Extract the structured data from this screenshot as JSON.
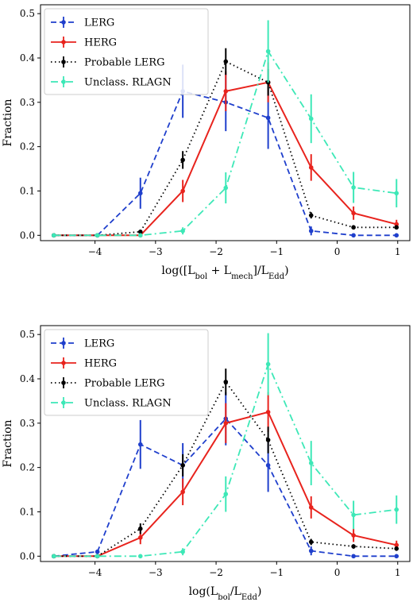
{
  "chart_data": [
    {
      "type": "line",
      "xlabel": "log([L_bol + L_mech]/L_Edd)",
      "xlabel_parts": {
        "pre": "log([L",
        "sub1": "bol",
        "mid1": " + L",
        "sub2": "mech",
        "mid2": "]/L",
        "sub3": "Edd",
        "post": ")"
      },
      "ylabel": "Fraction",
      "xlim": [
        -4.9,
        1.2
      ],
      "ylim": [
        -0.012,
        0.52
      ],
      "xticks": [
        -4,
        -3,
        -2,
        -1,
        0,
        1
      ],
      "xtick_labels": [
        "−4",
        "−3",
        "−2",
        "−1",
        "0",
        "1"
      ],
      "yticks": [
        0.0,
        0.1,
        0.2,
        0.3,
        0.4,
        0.5
      ],
      "ytick_labels": [
        "0.0",
        "0.1",
        "0.2",
        "0.3",
        "0.4",
        "0.5"
      ],
      "legend_position": "top-left",
      "series": [
        {
          "name": "LERG",
          "color": "#1f3fcc",
          "dash": "dashed",
          "x": [
            -4.68,
            -3.96,
            -3.25,
            -2.55,
            -1.84,
            -1.14,
            -0.43,
            0.27,
            0.98
          ],
          "y": [
            0.0,
            0.0,
            0.095,
            0.325,
            0.3,
            0.265,
            0.01,
            0.0,
            0.0
          ],
          "err": [
            0.0,
            0.0,
            0.035,
            0.06,
            0.065,
            0.07,
            0.01,
            0.0,
            0.0
          ]
        },
        {
          "name": "HERG",
          "color": "#e8231d",
          "dash": "solid",
          "x": [
            -4.68,
            -3.96,
            -3.25,
            -2.55,
            -1.84,
            -1.14,
            -0.43,
            0.27,
            0.98
          ],
          "y": [
            0.0,
            0.0,
            0.0,
            0.1,
            0.325,
            0.345,
            0.153,
            0.05,
            0.025
          ],
          "err": [
            0.0,
            0.0,
            0.0,
            0.025,
            0.045,
            0.045,
            0.03,
            0.015,
            0.01
          ]
        },
        {
          "name": "Probable LERG",
          "color": "#000000",
          "dash": "dotted",
          "x": [
            -4.68,
            -3.96,
            -3.25,
            -2.55,
            -1.84,
            -1.14,
            -0.43,
            0.27,
            0.98
          ],
          "y": [
            0.0,
            0.0,
            0.008,
            0.17,
            0.392,
            0.345,
            0.045,
            0.018,
            0.018
          ],
          "err": [
            0.0,
            0.0,
            0.004,
            0.02,
            0.03,
            0.03,
            0.007,
            0.005,
            0.005
          ]
        },
        {
          "name": "Unclass. RLAGN",
          "color": "#3de8b7",
          "dash": "dashdot",
          "x": [
            -4.68,
            -3.96,
            -3.25,
            -2.55,
            -1.84,
            -1.14,
            -0.43,
            0.27,
            0.98
          ],
          "y": [
            0.0,
            0.0,
            0.0,
            0.01,
            0.107,
            0.415,
            0.263,
            0.108,
            0.095
          ],
          "err": [
            0.0,
            0.0,
            0.0,
            0.008,
            0.035,
            0.07,
            0.055,
            0.035,
            0.032
          ]
        }
      ]
    },
    {
      "type": "line",
      "xlabel": "log(L_bol/L_Edd)",
      "xlabel_parts": {
        "pre": "log(L",
        "sub1": "bol",
        "mid1": "/L",
        "sub2": "Edd",
        "mid2": "",
        "sub3": "",
        "post": ")"
      },
      "ylabel": "Fraction",
      "xlim": [
        -4.9,
        1.2
      ],
      "ylim": [
        -0.012,
        0.52
      ],
      "xticks": [
        -4,
        -3,
        -2,
        -1,
        0,
        1
      ],
      "xtick_labels": [
        "−4",
        "−3",
        "−2",
        "−1",
        "0",
        "1"
      ],
      "yticks": [
        0.0,
        0.1,
        0.2,
        0.3,
        0.4,
        0.5
      ],
      "ytick_labels": [
        "0.0",
        "0.1",
        "0.2",
        "0.3",
        "0.4",
        "0.5"
      ],
      "legend_position": "top-left",
      "series": [
        {
          "name": "LERG",
          "color": "#1f3fcc",
          "dash": "dashed",
          "x": [
            -4.68,
            -3.96,
            -3.25,
            -2.55,
            -1.84,
            -1.14,
            -0.43,
            0.27,
            0.98
          ],
          "y": [
            0.0,
            0.01,
            0.252,
            0.205,
            0.31,
            0.205,
            0.012,
            0.0,
            0.0
          ],
          "err": [
            0.0,
            0.005,
            0.055,
            0.05,
            0.06,
            0.06,
            0.01,
            0.0,
            0.0
          ]
        },
        {
          "name": "HERG",
          "color": "#e8231d",
          "dash": "solid",
          "x": [
            -4.68,
            -3.96,
            -3.25,
            -2.55,
            -1.84,
            -1.14,
            -0.43,
            0.27,
            0.98
          ],
          "y": [
            0.0,
            0.0,
            0.042,
            0.145,
            0.3,
            0.325,
            0.11,
            0.047,
            0.025
          ],
          "err": [
            0.0,
            0.0,
            0.015,
            0.03,
            0.045,
            0.045,
            0.025,
            0.015,
            0.01
          ]
        },
        {
          "name": "Probable LERG",
          "color": "#000000",
          "dash": "dotted",
          "x": [
            -4.68,
            -3.96,
            -3.25,
            -2.55,
            -1.84,
            -1.14,
            -0.43,
            0.27,
            0.98
          ],
          "y": [
            0.0,
            0.0,
            0.062,
            0.205,
            0.393,
            0.262,
            0.032,
            0.022,
            0.017
          ],
          "err": [
            0.0,
            0.0,
            0.012,
            0.025,
            0.03,
            0.03,
            0.007,
            0.005,
            0.005
          ]
        },
        {
          "name": "Unclass. RLAGN",
          "color": "#3de8b7",
          "dash": "dashdot",
          "x": [
            -4.68,
            -3.96,
            -3.25,
            -2.55,
            -1.84,
            -1.14,
            -0.43,
            0.27,
            0.98
          ],
          "y": [
            0.0,
            0.0,
            0.0,
            0.01,
            0.14,
            0.433,
            0.21,
            0.093,
            0.105
          ],
          "err": [
            0.0,
            0.0,
            0.0,
            0.008,
            0.04,
            0.07,
            0.05,
            0.032,
            0.032
          ]
        }
      ]
    }
  ]
}
